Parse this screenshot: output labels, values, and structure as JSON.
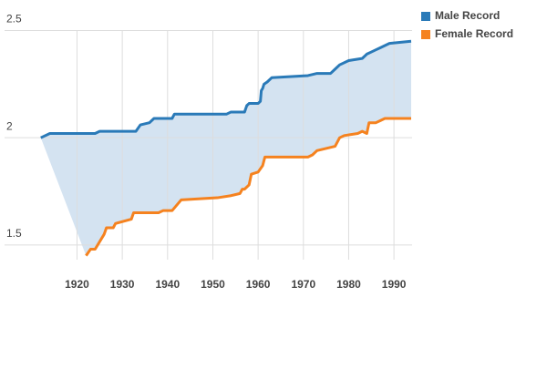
{
  "chart_data": {
    "type": "line",
    "xlim": [
      1904,
      1994
    ],
    "ylim": [
      1.41,
      2.6
    ],
    "xticks": [
      1920,
      1930,
      1940,
      1950,
      1960,
      1970,
      1980,
      1990
    ],
    "yticks": [
      1.5,
      2,
      2.5
    ],
    "grid": true,
    "legend": "top-right",
    "area_between": true,
    "area_color": "#d4e3f1",
    "series": [
      {
        "name": "Male Record",
        "color": "#2a7ab8",
        "x": [
          1912,
          1914,
          1924,
          1925,
          1933,
          1934,
          1936,
          1937,
          1941,
          1941.5,
          1953,
          1954,
          1957,
          1957.5,
          1958,
          1960,
          1960.5,
          1960.7,
          1961,
          1961.3,
          1962,
          1963,
          1971,
          1973,
          1976,
          1977,
          1978,
          1980,
          1983,
          1984,
          1985,
          1986,
          1987,
          1989,
          1993.8
        ],
        "values": [
          2.0,
          2.02,
          2.02,
          2.03,
          2.03,
          2.06,
          2.07,
          2.09,
          2.09,
          2.11,
          2.11,
          2.12,
          2.12,
          2.15,
          2.16,
          2.16,
          2.17,
          2.22,
          2.23,
          2.25,
          2.26,
          2.28,
          2.29,
          2.3,
          2.3,
          2.32,
          2.34,
          2.36,
          2.37,
          2.39,
          2.4,
          2.41,
          2.42,
          2.44,
          2.45
        ]
      },
      {
        "name": "Female Record",
        "color": "#f5821f",
        "x": [
          1922,
          1923,
          1924,
          1926,
          1926.5,
          1928,
          1928.5,
          1932,
          1932.5,
          1938,
          1939,
          1941,
          1943,
          1951,
          1954,
          1956,
          1956.5,
          1957,
          1958,
          1958.5,
          1960,
          1961,
          1961.5,
          1971,
          1972,
          1973,
          1975,
          1977,
          1978,
          1979,
          1982,
          1983,
          1984,
          1984.5,
          1986,
          1987,
          1988,
          1993.8
        ],
        "values": [
          1.45,
          1.48,
          1.48,
          1.55,
          1.58,
          1.58,
          1.6,
          1.62,
          1.65,
          1.65,
          1.66,
          1.66,
          1.71,
          1.72,
          1.73,
          1.74,
          1.76,
          1.76,
          1.78,
          1.83,
          1.84,
          1.87,
          1.91,
          1.91,
          1.92,
          1.94,
          1.95,
          1.96,
          2.0,
          2.01,
          2.02,
          2.03,
          2.02,
          2.07,
          2.07,
          2.08,
          2.09,
          2.09
        ]
      }
    ]
  }
}
